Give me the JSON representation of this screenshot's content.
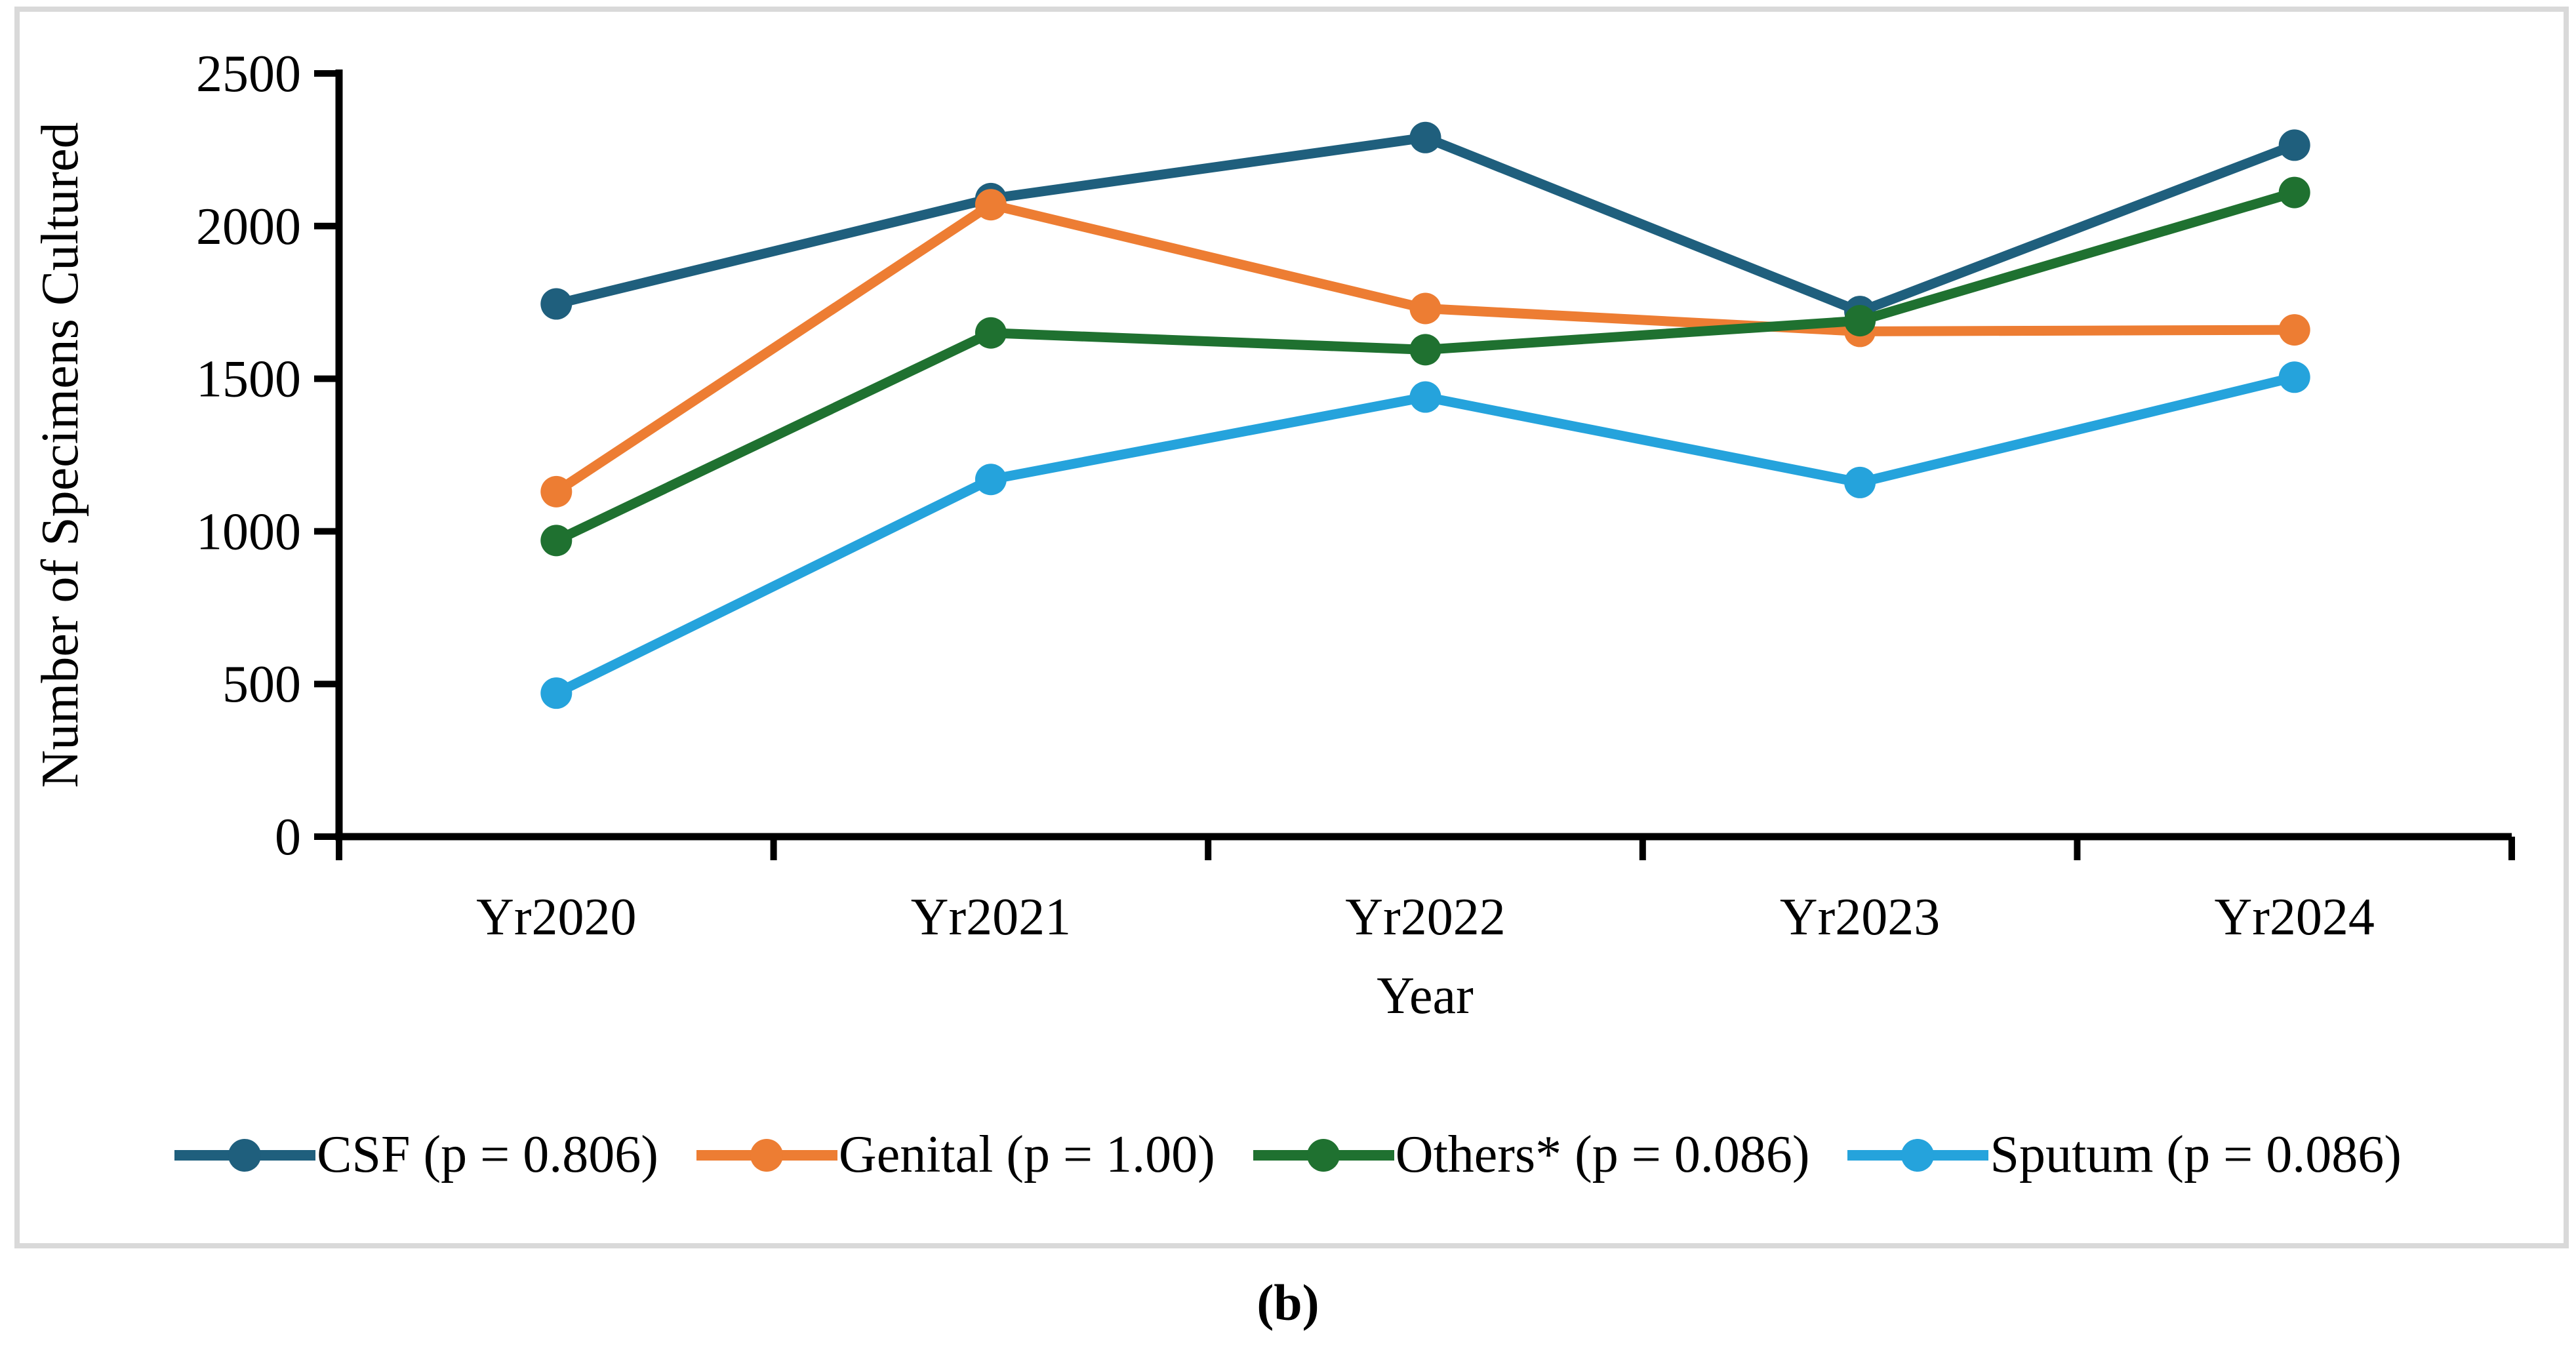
{
  "figure": {
    "caption": "(b)",
    "frame_color": "#d9d9d9",
    "axis_color": "#000000",
    "background": "#ffffff"
  },
  "chart_data": {
    "type": "line",
    "title": "",
    "xlabel": "Year",
    "ylabel": "Number of Specimens Cultured",
    "categories": [
      "Yr2020",
      "Yr2021",
      "Yr2022",
      "Yr2023",
      "Yr2024"
    ],
    "series": [
      {
        "name": "CSF (p = 0.806)",
        "color": "#1f5f7d",
        "values": [
          1745,
          2090,
          2290,
          1720,
          2265
        ]
      },
      {
        "name": "Genital (p = 1.00)",
        "color": "#ed7d33",
        "values": [
          1130,
          2070,
          1730,
          1655,
          1660
        ]
      },
      {
        "name": "Others* (p = 0.086)",
        "color": "#1f7130",
        "values": [
          970,
          1650,
          1595,
          1690,
          2110
        ]
      },
      {
        "name": "Sputum (p = 0.086)",
        "color": "#25a3dc",
        "values": [
          470,
          1170,
          1440,
          1160,
          1505
        ]
      }
    ],
    "ylim": [
      0,
      2500
    ],
    "ytick_step": 500,
    "yticks": [
      "0",
      "500",
      "1000",
      "1500",
      "2000",
      "2500"
    ],
    "grid": false,
    "legend_position": "bottom",
    "marker": "circle"
  }
}
